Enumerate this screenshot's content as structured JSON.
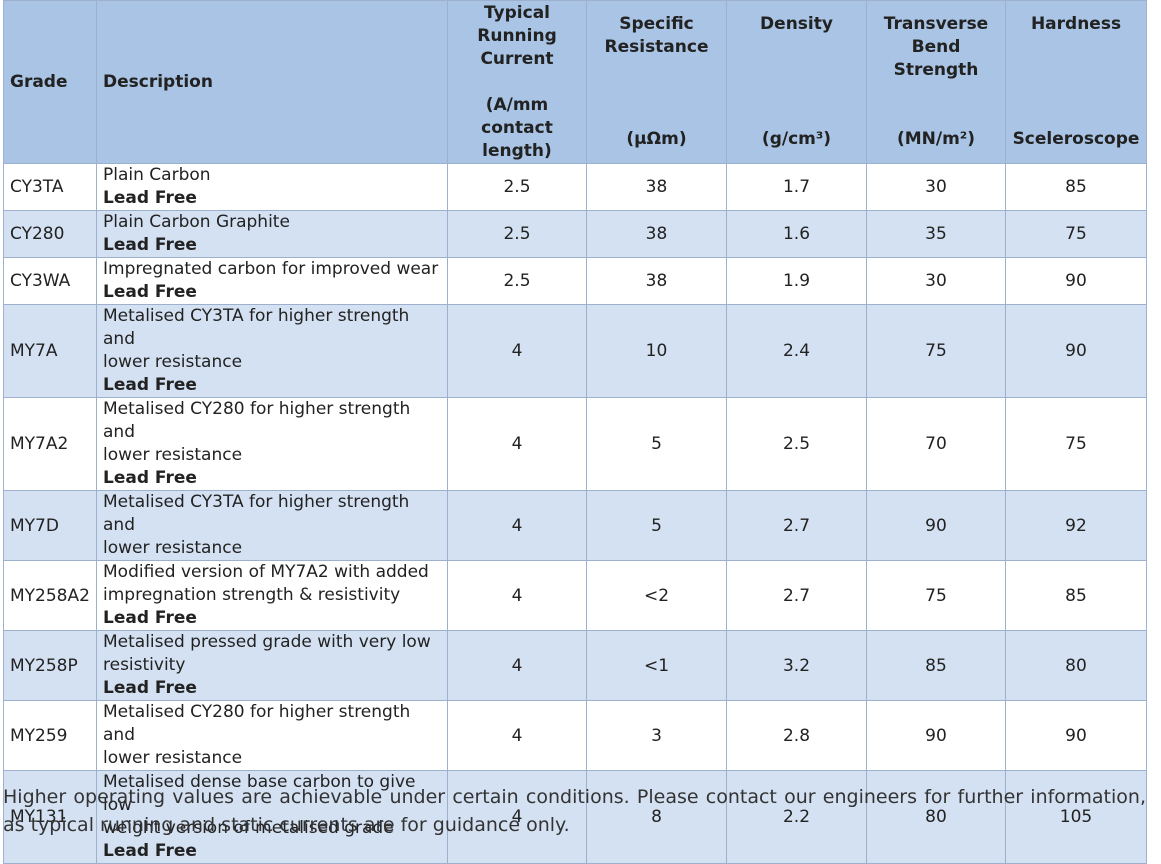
{
  "table": {
    "headers": {
      "grade": "Grade",
      "description": "Description",
      "current": {
        "title": [
          "Typical",
          "Running",
          "Current"
        ],
        "unit": [
          "(A/mm",
          "contact",
          "length)"
        ]
      },
      "resistance": {
        "title": [
          "Specific",
          "Resistance"
        ],
        "unit": "(µΩm)"
      },
      "density": {
        "title": [
          "Density"
        ],
        "unit": "(g/cm³)"
      },
      "strength": {
        "title": [
          "Transverse",
          "Bend",
          "Strength"
        ],
        "unit": "(MN/m²)"
      },
      "hardness": {
        "title": [
          "Hardness"
        ],
        "unit": "Sceleroscope"
      }
    },
    "rows": [
      {
        "grade": "CY3TA",
        "desc": [
          "Plain Carbon"
        ],
        "lead": "Lead Free",
        "current": "2.5",
        "resistance": "38",
        "density": "1.7",
        "strength": "30",
        "hardness": "85"
      },
      {
        "grade": "CY280",
        "desc": [
          "Plain Carbon Graphite"
        ],
        "lead": "Lead Free",
        "current": "2.5",
        "resistance": "38",
        "density": "1.6",
        "strength": "35",
        "hardness": "75"
      },
      {
        "grade": "CY3WA",
        "desc": [
          "Impregnated carbon for improved wear"
        ],
        "lead": "Lead Free",
        "current": "2.5",
        "resistance": "38",
        "density": "1.9",
        "strength": "30",
        "hardness": "90"
      },
      {
        "grade": "MY7A",
        "desc": [
          "Metalised CY3TA for higher strength and",
          "lower resistance"
        ],
        "lead": "Lead Free",
        "current": "4",
        "resistance": "10",
        "density": "2.4",
        "strength": "75",
        "hardness": "90"
      },
      {
        "grade": "MY7A2",
        "desc": [
          "Metalised CY280 for higher strength and",
          "lower resistance"
        ],
        "lead": "Lead Free",
        "current": "4",
        "resistance": "5",
        "density": "2.5",
        "strength": "70",
        "hardness": "75"
      },
      {
        "grade": "MY7D",
        "desc": [
          "Metalised CY3TA for higher strength and",
          "lower resistance"
        ],
        "lead": "",
        "current": "4",
        "resistance": "5",
        "density": "2.7",
        "strength": "90",
        "hardness": "92"
      },
      {
        "grade": "MY258A2",
        "desc": [
          "Modified version of MY7A2 with added",
          "impregnation strength & resistivity"
        ],
        "lead": "Lead Free",
        "current": "4",
        "resistance": "<2",
        "density": "2.7",
        "strength": "75",
        "hardness": "85"
      },
      {
        "grade": "MY258P",
        "desc": [
          "Metalised pressed grade with very low",
          "resistivity"
        ],
        "lead": "Lead Free",
        "current": "4",
        "resistance": "<1",
        "density": "3.2",
        "strength": "85",
        "hardness": "80"
      },
      {
        "grade": "MY259",
        "desc": [
          "Metalised CY280 for higher strength and",
          "lower resistance"
        ],
        "lead": "",
        "current": "4",
        "resistance": "3",
        "density": "2.8",
        "strength": "90",
        "hardness": "90"
      },
      {
        "grade": "MY131",
        "desc": [
          "Metalised dense base carbon to give low",
          "weight version of metalised grade"
        ],
        "lead": "Lead Free",
        "current": "4",
        "resistance": "8",
        "density": "2.2",
        "strength": "80",
        "hardness": "105"
      }
    ]
  },
  "footnote": "Higher operating values are achievable under certain conditions. Please contact our engineers for further information, as typical running and static currents are for guidance only.",
  "colors": {
    "header_bg": "#a9c4e4",
    "row_alt_bg": "#d4e1f2",
    "border": "#9db0cc"
  }
}
